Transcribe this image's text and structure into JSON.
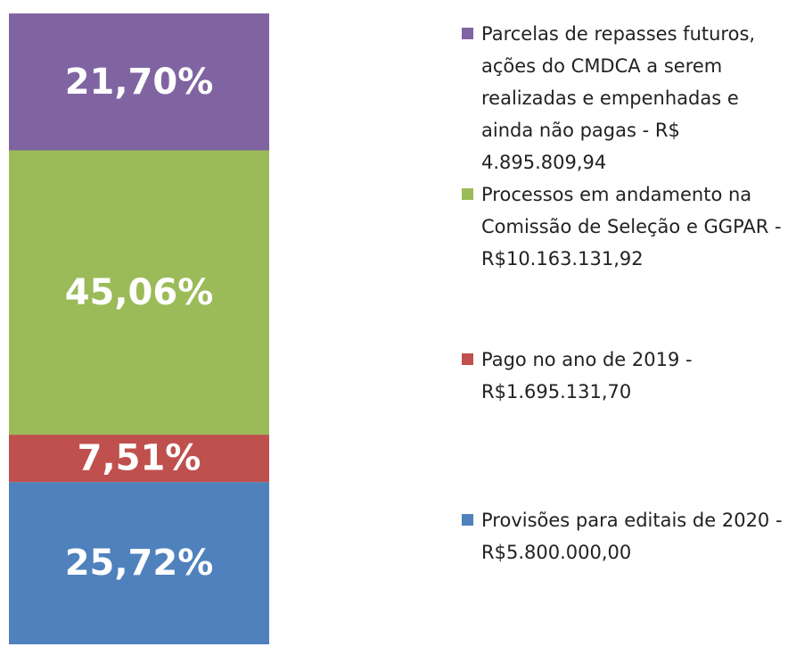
{
  "chart_data": {
    "type": "stacked_bar",
    "categories": [
      null
    ],
    "ylim": [
      0,
      100
    ],
    "series": [
      {
        "name": "Provisões para editais de 2020 - R$5.800.000,00",
        "color": "#4f81bd",
        "values": [
          25.72
        ],
        "value_labels": [
          "25,72%"
        ]
      },
      {
        "name": "Pago no ano de 2019 - R$1.695.131,70",
        "color": "#c0504d",
        "values": [
          7.51
        ],
        "value_labels": [
          "7,51%"
        ]
      },
      {
        "name": "Processos em andamento na Comissão de Seleção e GGPAR - R$10.163.131,92",
        "color": "#9bbb59",
        "values": [
          45.06
        ],
        "value_labels": [
          "45,06%"
        ]
      },
      {
        "name": "Parcelas de repasses futuros, ações do CMDCA a serem realizadas e empenhadas e ainda não pagas - R$ 4.895.809,94",
        "color": "#8064a2",
        "values": [
          21.7
        ],
        "value_labels": [
          "21,70%"
        ]
      }
    ]
  }
}
